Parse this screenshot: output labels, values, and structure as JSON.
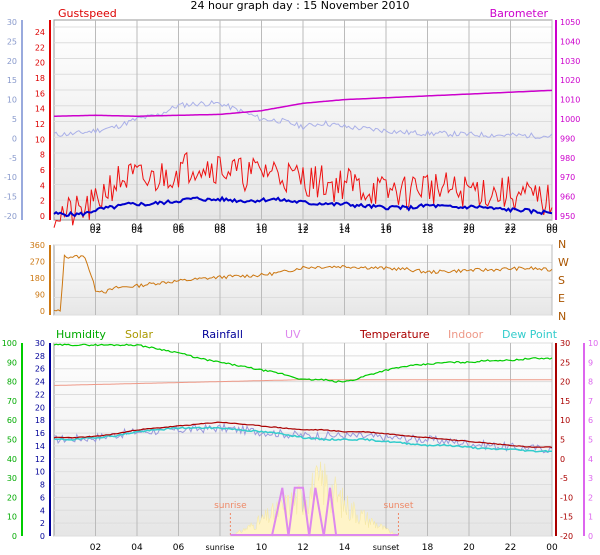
{
  "title": "24 hour graph day : 15 November 2010",
  "colors": {
    "gust": "#ee1111",
    "wind": "#0000cc",
    "baro": "#cc00cc",
    "temp_top": "#aab0e8",
    "dir": "#cc7711",
    "humidity": "#00bb00",
    "solar": "#aa9900",
    "rainfall": "#000099",
    "uv": "#dd88ee",
    "temperature": "#aa0000",
    "indoor": "#ee9988",
    "dewpoint": "#33cccc",
    "sun_marker": "#ee8866"
  },
  "x_ticks": [
    "02",
    "04",
    "06",
    "08",
    "10",
    "12",
    "14",
    "16",
    "18",
    "20",
    "22",
    "00"
  ],
  "x_ticks_bottom": [
    "02",
    "04",
    "06",
    "sunrise",
    "10",
    "12",
    "14",
    "sunset",
    "18",
    "20",
    "22",
    "00"
  ],
  "chart_data": [
    {
      "type": "line",
      "name": "wind",
      "labels": {
        "left": "Gustspeed",
        "right": "Barometer"
      },
      "axes": {
        "outer_left": {
          "ticks": [
            "30",
            "25",
            "20",
            "15",
            "10",
            "5",
            "0",
            "-5",
            "-10",
            "-15",
            "-20"
          ],
          "range": [
            -20,
            30
          ]
        },
        "left": {
          "ticks": [
            "24",
            "22",
            "20",
            "18",
            "16",
            "14",
            "12",
            "10",
            "8",
            "6",
            "4",
            "2",
            "0"
          ],
          "range": [
            0,
            25
          ]
        },
        "right": {
          "ticks": [
            "1050",
            "1040",
            "1030",
            "1020",
            "1010",
            "1000",
            "990",
            "980",
            "970",
            "960",
            "950"
          ],
          "range": [
            945,
            1050
          ]
        }
      },
      "x_range_hours": [
        0,
        24
      ],
      "series": [
        {
          "key": "gust",
          "x": [
            0,
            1,
            1.5,
            2,
            2.5,
            3,
            3.5,
            4,
            4.5,
            5,
            5.5,
            6,
            6.5,
            7,
            7.5,
            8,
            8.5,
            9,
            9.5,
            10,
            10.5,
            11,
            11.5,
            12,
            12.5,
            13,
            13.5,
            14,
            14.5,
            15,
            15.5,
            16,
            16.5,
            17,
            17.5,
            18,
            18.5,
            19,
            19.5,
            20,
            20.5,
            21,
            21.5,
            22,
            22.5,
            23,
            23.5,
            24
          ],
          "y": [
            0.5,
            0.3,
            0.8,
            1.5,
            3.5,
            4.5,
            5,
            5,
            4.5,
            5,
            5.5,
            6,
            6.5,
            7,
            6.5,
            6.5,
            6,
            5.5,
            5.5,
            6,
            6,
            5.5,
            5,
            5,
            4.5,
            4.5,
            4,
            4.5,
            4,
            3.5,
            3.5,
            3,
            3.5,
            3,
            4,
            4,
            3.5,
            3.5,
            3,
            3.5,
            3.5,
            3,
            3,
            3,
            2.5,
            2.5,
            2,
            2
          ]
        },
        {
          "key": "wind",
          "x": [
            0,
            1,
            1.5,
            2,
            2.5,
            3,
            3.5,
            4,
            4.5,
            5,
            5.5,
            6,
            6.5,
            7,
            7.5,
            8,
            8.5,
            9,
            9.5,
            10,
            10.5,
            11,
            11.5,
            12,
            12.5,
            13,
            13.5,
            14,
            14.5,
            15,
            15.5,
            16,
            16.5,
            17,
            17.5,
            18,
            18.5,
            19,
            19.5,
            20,
            20.5,
            21,
            21.5,
            22,
            22.5,
            23,
            23.5,
            24
          ],
          "y": [
            0.3,
            0.2,
            0.3,
            0.8,
            1,
            1.2,
            1.5,
            1.6,
            1.5,
            1.7,
            1.8,
            2,
            2.2,
            2.3,
            2.1,
            2.2,
            2.1,
            2,
            2,
            2.1,
            2.2,
            2.1,
            1.9,
            1.8,
            1.6,
            1.7,
            1.5,
            1.6,
            1.4,
            1.3,
            1.2,
            1.1,
            1.2,
            1,
            1.2,
            1.4,
            1.3,
            1.2,
            1.1,
            1.2,
            1.2,
            1,
            0.9,
            0.8,
            0.8,
            0.6,
            0.5,
            0.5
          ]
        },
        {
          "key": "baro",
          "x": [
            0,
            2,
            4,
            6,
            8,
            10,
            12,
            14,
            16,
            18,
            20,
            22,
            24
          ],
          "y": [
            999,
            999.5,
            999,
            999.5,
            1000,
            1002,
            1006,
            1008,
            1009,
            1010,
            1011,
            1012,
            1013
          ]
        },
        {
          "key": "temp_top",
          "x": [
            0,
            1,
            2,
            3,
            4,
            5,
            6,
            7,
            8,
            9,
            10,
            11,
            12,
            13,
            14,
            15,
            16,
            17,
            18,
            19,
            20,
            21,
            22,
            23,
            24
          ],
          "y": [
            1,
            1.2,
            2,
            3,
            5,
            6,
            8.5,
            9,
            9,
            7,
            5,
            4.5,
            3,
            4,
            3,
            2.5,
            2,
            1.5,
            1.3,
            1.2,
            1,
            0.9,
            0.8,
            0.7,
            0.6
          ]
        }
      ]
    },
    {
      "type": "line",
      "name": "direction",
      "axes": {
        "left": {
          "ticks": [
            "360",
            "270",
            "180",
            "90",
            "0"
          ],
          "range": [
            0,
            360
          ]
        },
        "right_labels": [
          "N",
          "W",
          "S",
          "E",
          "N"
        ]
      },
      "x_range_hours": [
        0,
        24
      ],
      "series": [
        {
          "key": "dir",
          "x": [
            0,
            0.3,
            0.5,
            1,
            1.5,
            2,
            2.5,
            3,
            4,
            5,
            6,
            7,
            8,
            9,
            10,
            11,
            12,
            13,
            14,
            15,
            16,
            17,
            18,
            19,
            20,
            21,
            22,
            23,
            24
          ],
          "y": [
            20,
            20,
            300,
            300,
            300,
            130,
            120,
            140,
            150,
            165,
            175,
            185,
            195,
            200,
            205,
            220,
            245,
            248,
            250,
            245,
            240,
            235,
            220,
            225,
            230,
            232,
            238,
            240,
            230
          ]
        }
      ]
    },
    {
      "type": "line",
      "name": "climate",
      "labels": {
        "humidity": "Humidity",
        "solar": "Solar",
        "rainfall": "Rainfall",
        "uv": "UV",
        "temperature": "Temperature",
        "indoor": "Indoor",
        "dewpoint": "Dew Point",
        "sunrise": "sunrise",
        "sunset": "sunset"
      },
      "axes": {
        "humidity": {
          "ticks": [
            "100",
            "90",
            "80",
            "70",
            "60",
            "50",
            "40",
            "30",
            "20",
            "10",
            "0"
          ],
          "range": [
            0,
            100
          ]
        },
        "left": {
          "ticks": [
            "30",
            "28",
            "26",
            "24",
            "22",
            "20",
            "18",
            "16",
            "14",
            "12",
            "10",
            "8",
            "6",
            "4",
            "2",
            "0"
          ],
          "range": [
            0,
            30
          ]
        },
        "right": {
          "ticks": [
            "30",
            "25",
            "20",
            "15",
            "10",
            "5",
            "0",
            "-5",
            "-10",
            "-15",
            "-20"
          ],
          "range": [
            -20,
            30
          ]
        },
        "uv": {
          "ticks": [
            "10",
            "9",
            "8",
            "7",
            "6",
            "5",
            "4",
            "3",
            "2",
            "1",
            "0"
          ],
          "range": [
            0,
            10
          ]
        }
      },
      "sunrise_hour": 8.5,
      "sunset_hour": 16.6,
      "x_range_hours": [
        0,
        24
      ],
      "series": [
        {
          "key": "humidity",
          "x": [
            0,
            4,
            5,
            6,
            7,
            8,
            9,
            10,
            11,
            12,
            13,
            13.5,
            14,
            14.5,
            15,
            16,
            17,
            18,
            19,
            20,
            21,
            22,
            23,
            24
          ],
          "y": [
            99,
            99,
            97,
            95,
            92,
            90,
            88,
            86,
            84,
            81,
            81,
            80,
            80,
            81,
            83,
            86,
            88,
            89,
            90,
            90,
            91,
            91,
            92,
            92
          ]
        },
        {
          "key": "indoor",
          "x": [
            0,
            4,
            8,
            12,
            16,
            20,
            24
          ],
          "y": [
            19,
            19.5,
            20,
            20.5,
            20.5,
            20.5,
            20.5
          ]
        },
        {
          "key": "temperature",
          "x": [
            0,
            1,
            2,
            3,
            4,
            5,
            6,
            7,
            8,
            9,
            10,
            11,
            12,
            13,
            14,
            15,
            16,
            17,
            18,
            19,
            20,
            21,
            22,
            23,
            24
          ],
          "y": [
            5.5,
            5.5,
            5.8,
            6.5,
            7.5,
            8,
            8.5,
            9,
            9.5,
            9,
            8.5,
            8,
            7.5,
            7.5,
            7,
            7,
            6.5,
            6,
            5.5,
            5,
            4.5,
            4,
            3.5,
            3,
            3
          ]
        },
        {
          "key": "dewpoint",
          "x": [
            0,
            1,
            2,
            3,
            4,
            5,
            6,
            7,
            8,
            9,
            10,
            11,
            12,
            13,
            14,
            15,
            16,
            17,
            18,
            19,
            20,
            21,
            22,
            23,
            24
          ],
          "y": [
            5,
            5,
            5.5,
            6,
            7,
            7.5,
            8,
            8,
            8,
            7.5,
            7,
            6.5,
            5.5,
            5,
            5,
            5,
            4.5,
            4,
            3.5,
            3.5,
            3,
            2.5,
            2.5,
            2,
            2
          ]
        },
        {
          "key": "temp_faint",
          "x": [
            0,
            2,
            4,
            6,
            8,
            10,
            12,
            14,
            16,
            18,
            20,
            22,
            24
          ],
          "y": [
            5,
            5.5,
            7,
            7.5,
            8,
            7,
            6,
            6,
            5.5,
            5,
            4,
            3,
            2.5
          ]
        },
        {
          "key": "solar",
          "x": [
            8.5,
            9,
            10,
            11,
            12,
            13,
            14,
            15,
            16,
            16.6
          ],
          "y": [
            0,
            0.3,
            1,
            1.8,
            2.5,
            3.5,
            2,
            1.2,
            0.4,
            0
          ]
        },
        {
          "key": "uv",
          "x": [
            10.5,
            11,
            11.3,
            11.6,
            12,
            12.3,
            12.6,
            13,
            13.3,
            13.6
          ],
          "y": [
            0,
            2.5,
            0,
            2.5,
            2.5,
            0,
            2.5,
            0,
            2.5,
            0
          ]
        }
      ]
    }
  ]
}
